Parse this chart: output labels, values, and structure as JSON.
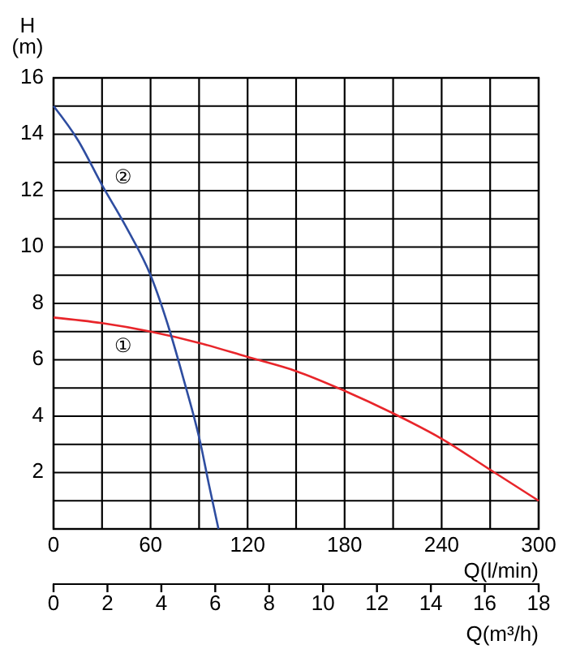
{
  "chart_data": {
    "type": "line",
    "ylabel": "H (m)",
    "xlabel": "Q(l/min)",
    "x2label": "Q(m³/h)",
    "xlim": [
      0,
      300
    ],
    "xticks": [
      0,
      {
        "value": 30,
        "label": null
      },
      60,
      {
        "value": 90,
        "label": null
      },
      120,
      {
        "value": 150,
        "label": null
      },
      180,
      {
        "value": 210,
        "label": null
      },
      240,
      {
        "value": 270,
        "label": null
      },
      300
    ],
    "x2lim": [
      0,
      18
    ],
    "x2ticks": [
      0,
      2,
      4,
      6,
      8,
      10,
      12,
      14,
      16,
      18
    ],
    "ylim": [
      0,
      16
    ],
    "yticks": [
      {
        "value": 0,
        "label": null
      },
      {
        "value": 1,
        "label": null
      },
      2,
      {
        "value": 3,
        "label": null
      },
      4,
      {
        "value": 5,
        "label": null
      },
      6,
      {
        "value": 7,
        "label": null
      },
      8,
      {
        "value": 9,
        "label": null
      },
      10,
      {
        "value": 11,
        "label": null
      },
      12,
      {
        "value": 13,
        "label": null
      },
      14,
      {
        "value": 15,
        "label": null
      },
      16
    ],
    "grid": true,
    "marker": "none",
    "line_style": "solid",
    "series": [
      {
        "name": "①",
        "color": "#e8252a",
        "x": [
          0,
          30,
          60,
          90,
          120,
          150,
          180,
          210,
          240,
          270,
          300
        ],
        "values": [
          7.5,
          7.3,
          7.0,
          6.6,
          6.1,
          5.6,
          4.9,
          4.1,
          3.2,
          2.1,
          1.0
        ]
      },
      {
        "name": "②",
        "color": "#2e4da0",
        "x": [
          0,
          15,
          30,
          45,
          60,
          72,
          80,
          91,
          96,
          102
        ],
        "values": [
          15.0,
          13.8,
          12.2,
          10.7,
          9.0,
          7.0,
          5.4,
          3.0,
          1.6,
          0
        ]
      }
    ]
  }
}
